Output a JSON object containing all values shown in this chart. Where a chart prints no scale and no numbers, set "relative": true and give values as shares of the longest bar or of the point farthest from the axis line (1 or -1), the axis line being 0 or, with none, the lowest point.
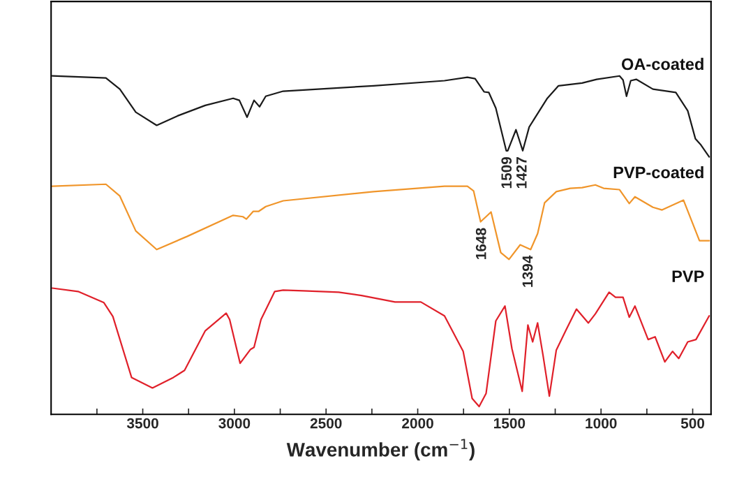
{
  "chart_data": {
    "type": "line",
    "relative": true,
    "xlabel": "Wavenumber (cm$^{−1}$)",
    "xlim": [
      4000,
      400
    ],
    "xticks": [
      {
        "value": 3750,
        "label": null
      },
      3500,
      {
        "value": 3250,
        "label": null
      },
      3000,
      {
        "value": 2750,
        "label": null
      },
      2500,
      {
        "value": 2250,
        "label": null
      },
      2000,
      {
        "value": 1750,
        "label": null
      },
      1500,
      {
        "value": 1250,
        "label": null
      },
      1000,
      {
        "value": 750,
        "label": null
      },
      500
    ],
    "tick_labels": "x",
    "grid": false,
    "legend": false,
    "marker": "none",
    "line_style": "solid",
    "series": [
      {
        "name": "OA-coated",
        "color": "#1a1a1a",
        "x": [
          3993,
          3701,
          3625,
          3538,
          3424,
          3310,
          3159,
          3007,
          2973,
          2931,
          2893,
          2863,
          2829,
          2734,
          2241,
          1854,
          1729,
          1687,
          1638,
          1612,
          1574,
          1517,
          1509,
          1464,
          1427,
          1392,
          1293,
          1232,
          1103,
          1024,
          899,
          880,
          861,
          838,
          808,
          717,
          592,
          527,
          485,
          455,
          410
        ],
        "values": [
          1.0,
          0.994,
          0.961,
          0.893,
          0.854,
          0.882,
          0.913,
          0.934,
          0.928,
          0.878,
          0.928,
          0.909,
          0.94,
          0.955,
          0.971,
          0.986,
          0.996,
          0.992,
          0.953,
          0.951,
          0.905,
          0.779,
          0.779,
          0.841,
          0.779,
          0.849,
          0.934,
          0.971,
          0.979,
          0.99,
          1.0,
          0.988,
          0.94,
          0.986,
          0.99,
          0.961,
          0.951,
          0.897,
          0.814,
          0.796,
          0.761
        ]
      },
      {
        "name": "PVP-coated",
        "color": "#f0952a",
        "x": [
          3993,
          3701,
          3625,
          3538,
          3424,
          3257,
          3007,
          2954,
          2935,
          2897,
          2867,
          2829,
          2734,
          2241,
          1854,
          1729,
          1695,
          1657,
          1600,
          1547,
          1502,
          1441,
          1384,
          1346,
          1308,
          1244,
          1168,
          1103,
          1031,
          986,
          899,
          846,
          815,
          717,
          667,
          550,
          463,
          410
        ],
        "values": [
          0.674,
          0.68,
          0.645,
          0.542,
          0.487,
          0.526,
          0.588,
          0.584,
          0.577,
          0.6,
          0.6,
          0.614,
          0.631,
          0.658,
          0.674,
          0.674,
          0.66,
          0.569,
          0.598,
          0.478,
          0.458,
          0.501,
          0.487,
          0.534,
          0.625,
          0.658,
          0.668,
          0.67,
          0.678,
          0.668,
          0.664,
          0.623,
          0.643,
          0.612,
          0.604,
          0.633,
          0.513,
          0.513
        ]
      },
      {
        "name": "PVP",
        "color": "#e0202a",
        "x": [
          3993,
          3853,
          3712,
          3663,
          3561,
          3447,
          3333,
          3272,
          3159,
          3045,
          3026,
          2969,
          2912,
          2893,
          2855,
          2780,
          2734,
          2624,
          2431,
          2306,
          2124,
          1983,
          1854,
          1752,
          1703,
          1665,
          1627,
          1574,
          1524,
          1486,
          1430,
          1399,
          1373,
          1346,
          1316,
          1282,
          1244,
          1191,
          1134,
          1069,
          1031,
          956,
          921,
          880,
          846,
          815,
          743,
          705,
          652,
          610,
          576,
          527,
          482,
          410
        ],
        "values": [
          0.373,
          0.363,
          0.33,
          0.289,
          0.109,
          0.078,
          0.109,
          0.13,
          0.247,
          0.299,
          0.28,
          0.151,
          0.192,
          0.198,
          0.28,
          0.363,
          0.367,
          0.365,
          0.361,
          0.351,
          0.332,
          0.332,
          0.291,
          0.186,
          0.047,
          0.023,
          0.062,
          0.276,
          0.32,
          0.194,
          0.068,
          0.264,
          0.214,
          0.27,
          0.173,
          0.054,
          0.19,
          0.249,
          0.311,
          0.27,
          0.297,
          0.361,
          0.346,
          0.346,
          0.287,
          0.32,
          0.221,
          0.229,
          0.155,
          0.186,
          0.165,
          0.214,
          0.221,
          0.291
        ]
      }
    ],
    "annotations": [
      {
        "text": "1509",
        "x": 1509,
        "y": 0.779
      },
      {
        "text": "1427",
        "x": 1427,
        "y": 0.779
      },
      {
        "text": "1648",
        "x": 1648,
        "y": 0.569
      },
      {
        "text": "1394",
        "x": 1394,
        "y": 0.487
      }
    ]
  }
}
